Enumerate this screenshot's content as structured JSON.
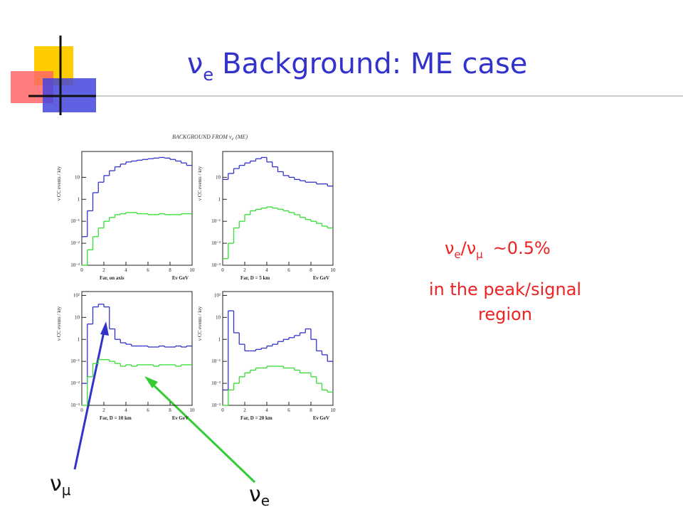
{
  "slide": {
    "title": {
      "symbol": "ν",
      "subscript": "e",
      "text": "Background: ME case"
    },
    "figure_title": {
      "before": "BACKGROUND FROM ν",
      "subscript": "e",
      "after": "(ME)"
    },
    "ratio": {
      "nu1": "ν",
      "sub1": "e",
      "slash": "/",
      "nu2": "ν",
      "sub2": "μ",
      "value": "~0.5%"
    },
    "note": [
      "in the peak/signal",
      "region"
    ],
    "arrow_labels": [
      {
        "symbol": "ν",
        "subscript": "μ",
        "color": "#3333cc"
      },
      {
        "symbol": "ν",
        "subscript": "e",
        "color": "#33cc33"
      }
    ]
  },
  "chart_data": [
    {
      "type": "histogram",
      "subtitle": "Far, on axis",
      "xlabel": "Eν GeV",
      "ylabel": "ν CC events / kty",
      "log_y": true,
      "bins": [
        0,
        0.5,
        1,
        1.5,
        2,
        2.5,
        3,
        3.5,
        4,
        4.5,
        5,
        5.5,
        6,
        6.5,
        7,
        7.5,
        8,
        8.5,
        9,
        9.5,
        10
      ],
      "xlim": [
        0,
        10
      ],
      "xticks": [
        0,
        2,
        4,
        6,
        8,
        10
      ],
      "ylim": [
        0.001,
        150
      ],
      "yticks": [
        {
          "value": 0.001,
          "label": "10⁻³"
        },
        {
          "value": 0.01,
          "label": "10⁻²"
        },
        {
          "value": 0.1,
          "label": "10⁻¹"
        },
        1,
        10
      ],
      "series": [
        {
          "color": "#3333cc",
          "values": [
            0.02,
            0.3,
            2,
            6,
            12,
            20,
            30,
            40,
            50,
            55,
            60,
            65,
            70,
            75,
            80,
            75,
            65,
            55,
            45,
            35
          ]
        },
        {
          "color": "#33dd33",
          "values": [
            0.001,
            0.005,
            0.02,
            0.05,
            0.1,
            0.15,
            0.2,
            0.22,
            0.25,
            0.25,
            0.22,
            0.22,
            0.2,
            0.2,
            0.22,
            0.2,
            0.2,
            0.2,
            0.22,
            0.22
          ]
        }
      ]
    },
    {
      "type": "histogram",
      "subtitle": "Far, D = 5 km",
      "xlabel": "Eν GeV",
      "ylabel": "ν CC events / kty",
      "log_y": true,
      "bins": [
        0,
        0.5,
        1,
        1.5,
        2,
        2.5,
        3,
        3.5,
        4,
        4.5,
        5,
        5.5,
        6,
        6.5,
        7,
        7.5,
        8,
        8.5,
        9,
        9.5,
        10
      ],
      "xlim": [
        0,
        10
      ],
      "xticks": [
        0,
        2,
        4,
        6,
        8,
        10
      ],
      "ylim": [
        0.001,
        150
      ],
      "yticks": [
        {
          "value": 0.001,
          "label": "10⁻³"
        },
        {
          "value": 0.01,
          "label": "10⁻²"
        },
        {
          "value": 0.1,
          "label": "10⁻¹"
        },
        1,
        10
      ],
      "series": [
        {
          "color": "#3333cc",
          "values": [
            8,
            15,
            25,
            35,
            45,
            55,
            70,
            80,
            50,
            30,
            18,
            12,
            10,
            8,
            7,
            6,
            6,
            5,
            5,
            4
          ]
        },
        {
          "color": "#33dd33",
          "values": [
            0.002,
            0.01,
            0.05,
            0.1,
            0.2,
            0.3,
            0.35,
            0.4,
            0.45,
            0.4,
            0.35,
            0.3,
            0.25,
            0.2,
            0.15,
            0.12,
            0.1,
            0.08,
            0.06,
            0.05
          ]
        }
      ]
    },
    {
      "type": "histogram",
      "subtitle": "Far, D = 10 km",
      "xlabel": "Eν GeV",
      "ylabel": "ν CC events / kty",
      "log_y": true,
      "bins": [
        0,
        0.5,
        1,
        1.5,
        2,
        2.5,
        3,
        3.5,
        4,
        4.5,
        5,
        5.5,
        6,
        6.5,
        7,
        7.5,
        8,
        8.5,
        9,
        9.5,
        10
      ],
      "xlim": [
        0,
        10
      ],
      "xticks": [
        0,
        2,
        4,
        6,
        8,
        10
      ],
      "ylim": [
        0.001,
        150
      ],
      "yticks": [
        {
          "value": 0.001,
          "label": "10⁻³"
        },
        {
          "value": 0.01,
          "label": "10⁻²"
        },
        {
          "value": 0.1,
          "label": "10⁻¹"
        },
        1,
        10,
        {
          "value": 100,
          "label": "10²"
        }
      ],
      "series": [
        {
          "color": "#3333cc",
          "values": [
            0.01,
            5,
            30,
            40,
            30,
            3,
            1,
            0.7,
            0.6,
            0.5,
            0.5,
            0.5,
            0.45,
            0.45,
            0.5,
            0.45,
            0.45,
            0.5,
            0.45,
            0.5
          ]
        },
        {
          "color": "#33dd33",
          "values": [
            0.001,
            0.02,
            0.08,
            0.12,
            0.12,
            0.1,
            0.08,
            0.06,
            0.07,
            0.06,
            0.07,
            0.07,
            0.07,
            0.06,
            0.07,
            0.07,
            0.07,
            0.06,
            0.07,
            0.07
          ]
        }
      ]
    },
    {
      "type": "histogram",
      "subtitle": "Far, D = 20 km",
      "xlabel": "Eν GeV",
      "ylabel": "ν CC events / kty",
      "log_y": true,
      "bins": [
        0,
        0.5,
        1,
        1.5,
        2,
        2.5,
        3,
        3.5,
        4,
        4.5,
        5,
        5.5,
        6,
        6.5,
        7,
        7.5,
        8,
        8.5,
        9,
        9.5,
        10
      ],
      "xlim": [
        0,
        10
      ],
      "xticks": [
        0,
        2,
        4,
        6,
        8,
        10
      ],
      "ylim": [
        0.001,
        150
      ],
      "yticks": [
        {
          "value": 0.001,
          "label": "10⁻³"
        },
        {
          "value": 0.01,
          "label": "10⁻²"
        },
        {
          "value": 0.1,
          "label": "10⁻¹"
        },
        1,
        10,
        {
          "value": 100,
          "label": "10²"
        }
      ],
      "series": [
        {
          "color": "#3333cc",
          "values": [
            0.005,
            20,
            2,
            0.6,
            0.3,
            0.3,
            0.35,
            0.4,
            0.5,
            0.6,
            0.8,
            1,
            1.2,
            1.5,
            2,
            3,
            1,
            0.3,
            0.2,
            0.1
          ]
        },
        {
          "color": "#33dd33",
          "values": [
            0.001,
            0.005,
            0.01,
            0.02,
            0.03,
            0.04,
            0.05,
            0.05,
            0.06,
            0.06,
            0.06,
            0.05,
            0.05,
            0.04,
            0.03,
            0.03,
            0.02,
            0.01,
            0.005,
            0.004
          ]
        }
      ]
    }
  ]
}
